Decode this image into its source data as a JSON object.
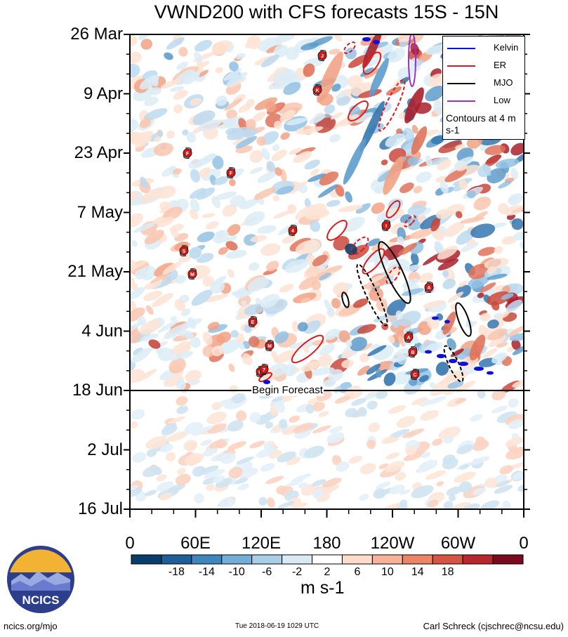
{
  "title": "VWND200 with CFS forecasts  15S - 15N",
  "chart_data": {
    "type": "heatmap",
    "title": "VWND200 with CFS forecasts  15S - 15N",
    "y_tick_labels": [
      "26 Mar",
      "9 Apr",
      "23 Apr",
      "7 May",
      "21 May",
      "4 Jun",
      "18 Jun",
      "2 Jul",
      "16 Jul"
    ],
    "x_tick_labels": [
      "0",
      "60E",
      "120E",
      "180",
      "120W",
      "60W",
      "0"
    ],
    "x_range": [
      0,
      360
    ],
    "colorbar": {
      "label": "m s-1",
      "tick_labels": [
        "-18",
        "-14",
        "-10",
        "-6",
        "-2",
        "2",
        "6",
        "10",
        "14",
        "18"
      ],
      "colors": [
        "#0b3d6b",
        "#1f5f97",
        "#3f86bd",
        "#73aed8",
        "#a9cfe8",
        "#d9eaf5",
        "#ffffff",
        "#fddccb",
        "#f7b39a",
        "#ec8466",
        "#d65442",
        "#b8262f",
        "#7a0a1e"
      ]
    },
    "legend": [
      {
        "name": "Kelvin",
        "color": "#1010dd"
      },
      {
        "name": "ER",
        "color": "#e01818"
      },
      {
        "name": "MJO",
        "color": "#000000"
      },
      {
        "name": "Low",
        "color": "#9a30c8"
      }
    ],
    "legend_note": "Contours at 4 m s-1",
    "forecast_marker": "Begin Forecast",
    "storm_letters": [
      "J",
      "K",
      "F",
      "F",
      "4",
      "S",
      "M",
      "I",
      "E",
      "M",
      "A",
      "A",
      "B",
      "C",
      "G",
      "7"
    ]
  },
  "footer": {
    "left": "ncics.org/mjo",
    "middle": "Tue 2018-06-19 1029 UTC",
    "right": "Carl Schreck (cjschrec@ncsu.edu)"
  },
  "logo_text": "NCICS"
}
